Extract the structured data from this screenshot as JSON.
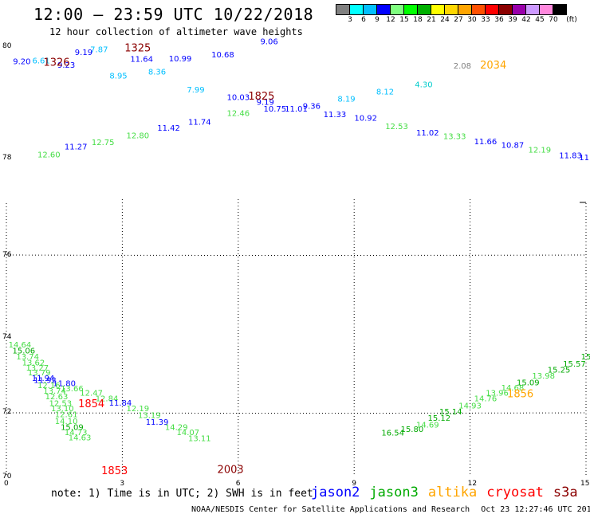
{
  "title": "12:00 – 23:59 UTC 10/22/2018",
  "subtitle": "12 hour collection of altimeter wave heights",
  "colorbar": {
    "unit": "(ft)",
    "labels": [
      "3",
      "6",
      "9",
      "12",
      "15",
      "18",
      "21",
      "24",
      "27",
      "30",
      "33",
      "36",
      "39",
      "42",
      "45",
      "70"
    ],
    "colors": [
      "#808080",
      "#00ffff",
      "#00bfff",
      "#0000ff",
      "#7fff7f",
      "#00ff00",
      "#00b000",
      "#ffff00",
      "#ffd700",
      "#ffa500",
      "#ff5000",
      "#ff0000",
      "#8b0000",
      "#9900aa",
      "#cc99ff",
      "#ff88dd",
      "#000000"
    ]
  },
  "note": "note: 1) Time is in UTC; 2) SWH is in feet",
  "legend": [
    {
      "name": "jason2",
      "color": "#0000ff"
    },
    {
      "name": "jason3",
      "color": "#00aa00"
    },
    {
      "name": "altika",
      "color": "#ffa500"
    },
    {
      "name": "cryosat",
      "color": "#ff0000"
    },
    {
      "name": "s3a",
      "color": "#8b0000"
    }
  ],
  "footer": {
    "source": "NOAA/NESDIS Center for Satellite Applications and Research",
    "timestamp": "Oct 23 12:27:46 UTC 2018"
  },
  "axes": {
    "lon_ticks": [
      "0",
      "3",
      "6",
      "9",
      "12",
      "15"
    ],
    "lat_ticks": [
      "80",
      "78",
      "76",
      "74",
      "72",
      "70"
    ],
    "lon_range": [
      0,
      15
    ],
    "lat_range": [
      70,
      80
    ]
  },
  "passes": [
    {
      "label": "1326",
      "lon": 1.3,
      "lat": 79.55,
      "color": "#8b0000"
    },
    {
      "label": "1325",
      "lon": 3.4,
      "lat": 79.88,
      "color": "#8b0000"
    },
    {
      "label": "1825",
      "lon": 6.6,
      "lat": 78.76,
      "color": "#8b0000"
    },
    {
      "label": "2034",
      "lon": 12.6,
      "lat": 79.48,
      "color": "#ffa500"
    },
    {
      "label": "1854",
      "lon": 2.2,
      "lat": 71.61,
      "color": "#ff0000"
    },
    {
      "label": "1853",
      "lon": 2.8,
      "lat": 70.06,
      "color": "#ff0000"
    },
    {
      "label": "2003",
      "lon": 5.8,
      "lat": 70.08,
      "color": "#8b0000"
    },
    {
      "label": "1856",
      "lon": 13.3,
      "lat": 71.84,
      "color": "#ffa500"
    }
  ],
  "swh": [
    {
      "v": "9.06",
      "lon": 6.8,
      "lat": 80.05,
      "c": "#0000ff"
    },
    {
      "v": "10.68",
      "lon": 5.6,
      "lat": 79.74,
      "c": "#0000ff"
    },
    {
      "v": "10.99",
      "lon": 4.5,
      "lat": 79.65,
      "c": "#0000ff"
    },
    {
      "v": "11.64",
      "lon": 3.5,
      "lat": 79.64,
      "c": "#0000ff"
    },
    {
      "v": "7.87",
      "lon": 2.4,
      "lat": 79.86,
      "c": "#00bfff"
    },
    {
      "v": "9.23",
      "lon": 1.55,
      "lat": 79.5,
      "c": "#0000ff"
    },
    {
      "v": "9.19",
      "lon": 2.0,
      "lat": 79.8,
      "c": "#0000ff"
    },
    {
      "v": "6.61",
      "lon": 0.9,
      "lat": 79.6,
      "c": "#00bfff"
    },
    {
      "v": "9.20",
      "lon": 0.4,
      "lat": 79.58,
      "c": "#0000ff"
    },
    {
      "v": "8.95",
      "lon": 2.9,
      "lat": 79.25,
      "c": "#00bfff"
    },
    {
      "v": "8.36",
      "lon": 3.9,
      "lat": 79.34,
      "c": "#00bfff"
    },
    {
      "v": "7.99",
      "lon": 4.9,
      "lat": 78.93,
      "c": "#00bfff"
    },
    {
      "v": "10.03",
      "lon": 6.0,
      "lat": 78.75,
      "c": "#0000ff"
    },
    {
      "v": "9.19",
      "lon": 6.7,
      "lat": 78.64,
      "c": "#0000ff"
    },
    {
      "v": "10.75",
      "lon": 6.95,
      "lat": 78.48,
      "c": "#0000ff"
    },
    {
      "v": "11.01",
      "lon": 7.5,
      "lat": 78.48,
      "c": "#0000ff"
    },
    {
      "v": "9.36",
      "lon": 7.9,
      "lat": 78.55,
      "c": "#0000ff"
    },
    {
      "v": "8.19",
      "lon": 8.8,
      "lat": 78.71,
      "c": "#00bfff"
    },
    {
      "v": "8.12",
      "lon": 9.8,
      "lat": 78.88,
      "c": "#00bfff"
    },
    {
      "v": "4.30",
      "lon": 10.8,
      "lat": 79.05,
      "c": "#00cccc"
    },
    {
      "v": "2.08",
      "lon": 11.8,
      "lat": 79.48,
      "c": "#808080"
    },
    {
      "v": "11.33",
      "lon": 8.5,
      "lat": 78.35,
      "c": "#0000ff"
    },
    {
      "v": "10.92",
      "lon": 9.3,
      "lat": 78.27,
      "c": "#0000ff"
    },
    {
      "v": "12.53",
      "lon": 10.1,
      "lat": 78.07,
      "c": "#44dd44"
    },
    {
      "v": "11.02",
      "lon": 10.9,
      "lat": 77.93,
      "c": "#0000ff"
    },
    {
      "v": "13.33",
      "lon": 11.6,
      "lat": 77.84,
      "c": "#44dd44"
    },
    {
      "v": "11.66",
      "lon": 12.4,
      "lat": 77.72,
      "c": "#0000ff"
    },
    {
      "v": "10.87",
      "lon": 13.1,
      "lat": 77.64,
      "c": "#0000ff"
    },
    {
      "v": "12.19",
      "lon": 13.8,
      "lat": 77.53,
      "c": "#44dd44"
    },
    {
      "v": "11.83",
      "lon": 14.6,
      "lat": 77.4,
      "c": "#0000ff"
    },
    {
      "v": "11",
      "lon": 14.95,
      "lat": 77.35,
      "c": "#0000ff"
    },
    {
      "v": "12.46",
      "lon": 6.0,
      "lat": 78.38,
      "c": "#44dd44"
    },
    {
      "v": "11.74",
      "lon": 5.0,
      "lat": 78.18,
      "c": "#0000ff"
    },
    {
      "v": "11.42",
      "lon": 4.2,
      "lat": 78.04,
      "c": "#0000ff"
    },
    {
      "v": "12.80",
      "lon": 3.4,
      "lat": 77.86,
      "c": "#44dd44"
    },
    {
      "v": "12.75",
      "lon": 2.5,
      "lat": 77.7,
      "c": "#44dd44"
    },
    {
      "v": "11.27",
      "lon": 1.8,
      "lat": 77.6,
      "c": "#0000ff"
    },
    {
      "v": "12.60",
      "lon": 1.1,
      "lat": 77.42,
      "c": "#44dd44"
    },
    {
      "v": "14.64",
      "lon": 0.35,
      "lat": 73.0,
      "c": "#44dd44"
    },
    {
      "v": "15.06",
      "lon": 0.45,
      "lat": 72.86,
      "c": "#00aa00"
    },
    {
      "v": "13.74",
      "lon": 0.55,
      "lat": 72.72,
      "c": "#44dd44"
    },
    {
      "v": "13.62",
      "lon": 0.7,
      "lat": 72.58,
      "c": "#44dd44"
    },
    {
      "v": "13.27",
      "lon": 0.8,
      "lat": 72.46,
      "c": "#44dd44"
    },
    {
      "v": "13.79",
      "lon": 0.85,
      "lat": 72.35,
      "c": "#44dd44"
    },
    {
      "v": "11.94",
      "lon": 0.95,
      "lat": 72.22,
      "c": "#0000ff"
    },
    {
      "v": "11.92",
      "lon": 1.0,
      "lat": 72.18,
      "c": "#0000ff"
    },
    {
      "v": "11.80",
      "lon": 1.5,
      "lat": 72.1,
      "c": "#0000ff"
    },
    {
      "v": "12.16",
      "lon": 1.1,
      "lat": 72.06,
      "c": "#44dd44"
    },
    {
      "v": "13.66",
      "lon": 1.7,
      "lat": 71.98,
      "c": "#44dd44"
    },
    {
      "v": "13.74",
      "lon": 1.25,
      "lat": 71.93,
      "c": "#44dd44"
    },
    {
      "v": "12.47",
      "lon": 2.2,
      "lat": 71.88,
      "c": "#44dd44"
    },
    {
      "v": "12.63",
      "lon": 1.3,
      "lat": 71.8,
      "c": "#44dd44"
    },
    {
      "v": "12.84",
      "lon": 2.6,
      "lat": 71.75,
      "c": "#44dd44"
    },
    {
      "v": "11.84",
      "lon": 2.95,
      "lat": 71.65,
      "c": "#0000ff"
    },
    {
      "v": "12.53",
      "lon": 1.4,
      "lat": 71.64,
      "c": "#44dd44"
    },
    {
      "v": "13.10",
      "lon": 1.45,
      "lat": 71.52,
      "c": "#44dd44"
    },
    {
      "v": "12.61",
      "lon": 1.55,
      "lat": 71.38,
      "c": "#44dd44"
    },
    {
      "v": "12.19",
      "lon": 3.4,
      "lat": 71.52,
      "c": "#44dd44"
    },
    {
      "v": "14.10",
      "lon": 1.55,
      "lat": 71.22,
      "c": "#44dd44"
    },
    {
      "v": "13.19",
      "lon": 3.7,
      "lat": 71.36,
      "c": "#44dd44"
    },
    {
      "v": "15.09",
      "lon": 1.7,
      "lat": 71.08,
      "c": "#00aa00"
    },
    {
      "v": "11.39",
      "lon": 3.9,
      "lat": 71.2,
      "c": "#0000ff"
    },
    {
      "v": "14.73",
      "lon": 1.8,
      "lat": 70.96,
      "c": "#44dd44"
    },
    {
      "v": "14.29",
      "lon": 4.4,
      "lat": 71.08,
      "c": "#44dd44"
    },
    {
      "v": "14.63",
      "lon": 1.9,
      "lat": 70.84,
      "c": "#44dd44"
    },
    {
      "v": "14.07",
      "lon": 4.7,
      "lat": 70.96,
      "c": "#44dd44"
    },
    {
      "v": "13.11",
      "lon": 5.0,
      "lat": 70.82,
      "c": "#44dd44"
    },
    {
      "v": "16.54",
      "lon": 10.0,
      "lat": 70.95,
      "c": "#00aa00"
    },
    {
      "v": "15.80",
      "lon": 10.5,
      "lat": 71.04,
      "c": "#00aa00"
    },
    {
      "v": "14.69",
      "lon": 10.9,
      "lat": 71.14,
      "c": "#44dd44"
    },
    {
      "v": "15.12",
      "lon": 11.2,
      "lat": 71.3,
      "c": "#00aa00"
    },
    {
      "v": "15.14",
      "lon": 11.5,
      "lat": 71.44,
      "c": "#00aa00"
    },
    {
      "v": "14.93",
      "lon": 12.0,
      "lat": 71.58,
      "c": "#44dd44"
    },
    {
      "v": "14.76",
      "lon": 12.4,
      "lat": 71.75,
      "c": "#44dd44"
    },
    {
      "v": "13.96",
      "lon": 12.7,
      "lat": 71.88,
      "c": "#44dd44"
    },
    {
      "v": "14.68",
      "lon": 13.1,
      "lat": 72.0,
      "c": "#44dd44"
    },
    {
      "v": "15.09",
      "lon": 13.5,
      "lat": 72.12,
      "c": "#00aa00"
    },
    {
      "v": "13.98",
      "lon": 13.9,
      "lat": 72.28,
      "c": "#44dd44"
    },
    {
      "v": "15.25",
      "lon": 14.3,
      "lat": 72.42,
      "c": "#00aa00"
    },
    {
      "v": "15.57",
      "lon": 14.7,
      "lat": 72.56,
      "c": "#00aa00"
    },
    {
      "v": "15",
      "lon": 15.0,
      "lat": 72.72,
      "c": "#00aa00"
    }
  ]
}
